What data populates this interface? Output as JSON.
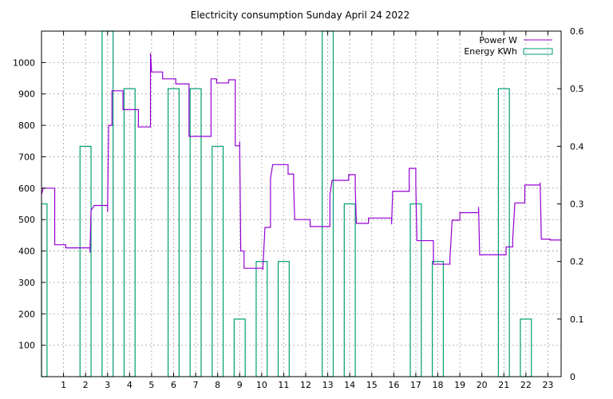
{
  "chart_data": {
    "type": "line",
    "title": "Electricity consumption Sunday April 24 2022",
    "xlabel": "",
    "ylabel": "",
    "xlim": [
      0,
      23.6
    ],
    "ylim": [
      0,
      1100
    ],
    "y2lim": [
      0,
      0.6
    ],
    "x_ticks": [
      1,
      2,
      3,
      4,
      5,
      6,
      7,
      8,
      9,
      10,
      11,
      12,
      13,
      14,
      15,
      16,
      17,
      18,
      19,
      20,
      21,
      22,
      23
    ],
    "y_ticks": [
      100,
      200,
      300,
      400,
      500,
      600,
      700,
      800,
      900,
      1000
    ],
    "y2_ticks": [
      0,
      0.1,
      0.2,
      0.3,
      0.4,
      0.5,
      0.6
    ],
    "grid": true,
    "legend_position": "top-right",
    "colors": {
      "power": "#9400d3",
      "energy": "#009e73"
    },
    "series": [
      {
        "name": "Power W",
        "style": "steps",
        "axis": "y",
        "points": [
          [
            0.0,
            580
          ],
          [
            0.08,
            600
          ],
          [
            0.6,
            600
          ],
          [
            0.6,
            420
          ],
          [
            1.1,
            420
          ],
          [
            1.1,
            410
          ],
          [
            2.2,
            410
          ],
          [
            2.2,
            395
          ],
          [
            2.25,
            530
          ],
          [
            2.4,
            545
          ],
          [
            3.0,
            545
          ],
          [
            3.0,
            525
          ],
          [
            3.05,
            800
          ],
          [
            3.2,
            800
          ],
          [
            3.2,
            910
          ],
          [
            3.7,
            910
          ],
          [
            3.7,
            850
          ],
          [
            4.4,
            850
          ],
          [
            4.4,
            795
          ],
          [
            4.95,
            795
          ],
          [
            4.95,
            1030
          ],
          [
            5.0,
            970
          ],
          [
            5.5,
            970
          ],
          [
            5.5,
            948
          ],
          [
            6.1,
            948
          ],
          [
            6.1,
            932
          ],
          [
            6.7,
            932
          ],
          [
            6.7,
            765
          ],
          [
            7.7,
            765
          ],
          [
            7.7,
            948
          ],
          [
            7.95,
            948
          ],
          [
            7.95,
            935
          ],
          [
            8.5,
            935
          ],
          [
            8.5,
            945
          ],
          [
            8.8,
            945
          ],
          [
            8.8,
            735
          ],
          [
            9.0,
            735
          ],
          [
            9.0,
            748
          ],
          [
            9.05,
            400
          ],
          [
            9.2,
            400
          ],
          [
            9.2,
            345
          ],
          [
            10.05,
            345
          ],
          [
            10.05,
            340
          ],
          [
            10.15,
            475
          ],
          [
            10.4,
            475
          ],
          [
            10.4,
            630
          ],
          [
            10.5,
            675
          ],
          [
            11.2,
            675
          ],
          [
            11.2,
            645
          ],
          [
            11.45,
            645
          ],
          [
            11.45,
            610
          ],
          [
            11.5,
            500
          ],
          [
            12.2,
            500
          ],
          [
            12.2,
            478
          ],
          [
            13.1,
            478
          ],
          [
            13.1,
            580
          ],
          [
            13.2,
            625
          ],
          [
            13.95,
            625
          ],
          [
            13.95,
            643
          ],
          [
            14.25,
            643
          ],
          [
            14.25,
            600
          ],
          [
            14.3,
            488
          ],
          [
            14.85,
            488
          ],
          [
            14.85,
            505
          ],
          [
            15.9,
            505
          ],
          [
            15.9,
            485
          ],
          [
            15.95,
            590
          ],
          [
            16.7,
            590
          ],
          [
            16.7,
            663
          ],
          [
            17.0,
            663
          ],
          [
            17.0,
            610
          ],
          [
            17.05,
            433
          ],
          [
            17.8,
            433
          ],
          [
            17.8,
            358
          ],
          [
            18.55,
            358
          ],
          [
            18.55,
            375
          ],
          [
            18.65,
            498
          ],
          [
            19.0,
            498
          ],
          [
            19.0,
            522
          ],
          [
            19.85,
            522
          ],
          [
            19.85,
            540
          ],
          [
            19.9,
            388
          ],
          [
            21.1,
            388
          ],
          [
            21.1,
            413
          ],
          [
            21.4,
            413
          ],
          [
            21.4,
            435
          ],
          [
            21.5,
            553
          ],
          [
            21.95,
            553
          ],
          [
            21.95,
            610
          ],
          [
            22.65,
            610
          ],
          [
            22.65,
            618
          ],
          [
            22.7,
            438
          ],
          [
            23.1,
            438
          ],
          [
            23.1,
            435
          ],
          [
            23.6,
            435
          ]
        ]
      },
      {
        "name": "Energy KWh",
        "style": "boxes",
        "axis": "y2",
        "bars": [
          [
            0.0,
            0.3
          ],
          [
            1.0,
            0.0
          ],
          [
            2.0,
            0.4
          ],
          [
            3.0,
            0.6
          ],
          [
            4.0,
            0.5
          ],
          [
            5.0,
            0.0
          ],
          [
            6.0,
            0.5
          ],
          [
            7.0,
            0.5
          ],
          [
            8.0,
            0.4
          ],
          [
            9.0,
            0.1
          ],
          [
            10.0,
            0.2
          ],
          [
            11.0,
            0.2
          ],
          [
            12.0,
            0.0
          ],
          [
            13.0,
            0.6
          ],
          [
            14.0,
            0.3
          ],
          [
            15.0,
            0.0
          ],
          [
            16.0,
            0.0
          ],
          [
            17.0,
            0.3
          ],
          [
            18.0,
            0.2
          ],
          [
            19.0,
            0.0
          ],
          [
            20.0,
            0.0
          ],
          [
            21.0,
            0.5
          ],
          [
            22.0,
            0.1
          ],
          [
            23.0,
            0.0
          ]
        ]
      }
    ]
  }
}
